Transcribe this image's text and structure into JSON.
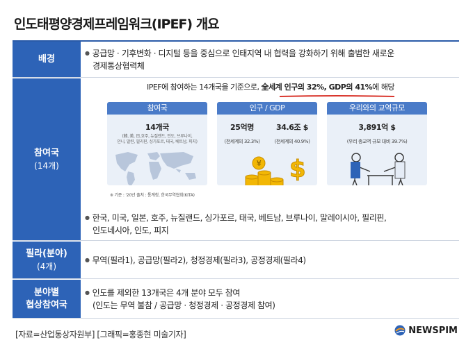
{
  "title": "인도태평양경제프레임워크(IPEF) 개요",
  "sections": {
    "background": {
      "label": "배경",
      "text_line1": "공급망 · 기후변화 · 디지털 등을 중심으로 인태지역 내 협력을 강화하기 위해 출범한 새로운",
      "text_line2": "경제통상협력체"
    },
    "members": {
      "label": "참여국",
      "sublabel": "(14개)",
      "headline_prefix": "IPEF에 참여하는 14개국을 기준으로,",
      "headline_bold": "全세계 인구의 32%, GDP의 41%",
      "headline_suffix": "에 해당",
      "cards": [
        {
          "head": "참여국",
          "value": "14개국",
          "detail_line1": "(韓, 美, 日,호주, 뉴질랜드, 인도, 브루나이,",
          "detail_line2": "인니, 말련, 필리핀, 싱가포르, 태국, 베트남, 피지)"
        },
        {
          "head": "인구 / GDP",
          "value_a": "25억명",
          "value_b": "34.6조 $",
          "detail_a": "(전세계의 32.3%)",
          "detail_b": "(전세계의 40.9%)"
        },
        {
          "head": "우리와의 교역규모",
          "value": "3,891억 $",
          "detail": "(우리 총교역 규모 대비 39.7%)"
        }
      ],
      "note": "※ 기준 : '20년 출처 : 통계청, 한국무역협회(KITA)",
      "list_line1": "한국, 미국, 일본, 호주, 뉴질랜드, 싱가포르, 태국, 베트남, 브루나이, 말레이시아, 필리핀,",
      "list_line2": "인도네시아, 인도, 피지"
    },
    "pillars": {
      "label": "필라(분야)",
      "sublabel": "(4개)",
      "text": "무역(필라1), 공급망(필라2), 청정경제(필라3), 공정경제(필라4)"
    },
    "participation": {
      "label_line1": "분야별",
      "label_line2": "협상참여국",
      "text_line1": "인도를 제외한 13개국은 4개 분야 모두 참여",
      "text_line2": "(인도는 무역 불참 / 공급망 · 청정경제 · 공정경제 참여)"
    }
  },
  "footer": {
    "source": "[자료=산업통상자원부] [그래픽=홍종현 미술기자]",
    "logo": "NEWSPIM"
  },
  "colors": {
    "label_bg": "#2d63b7",
    "card_head": "#4a7bc8",
    "card_bg": "#eaf0f8",
    "underline": "#d9342b"
  }
}
